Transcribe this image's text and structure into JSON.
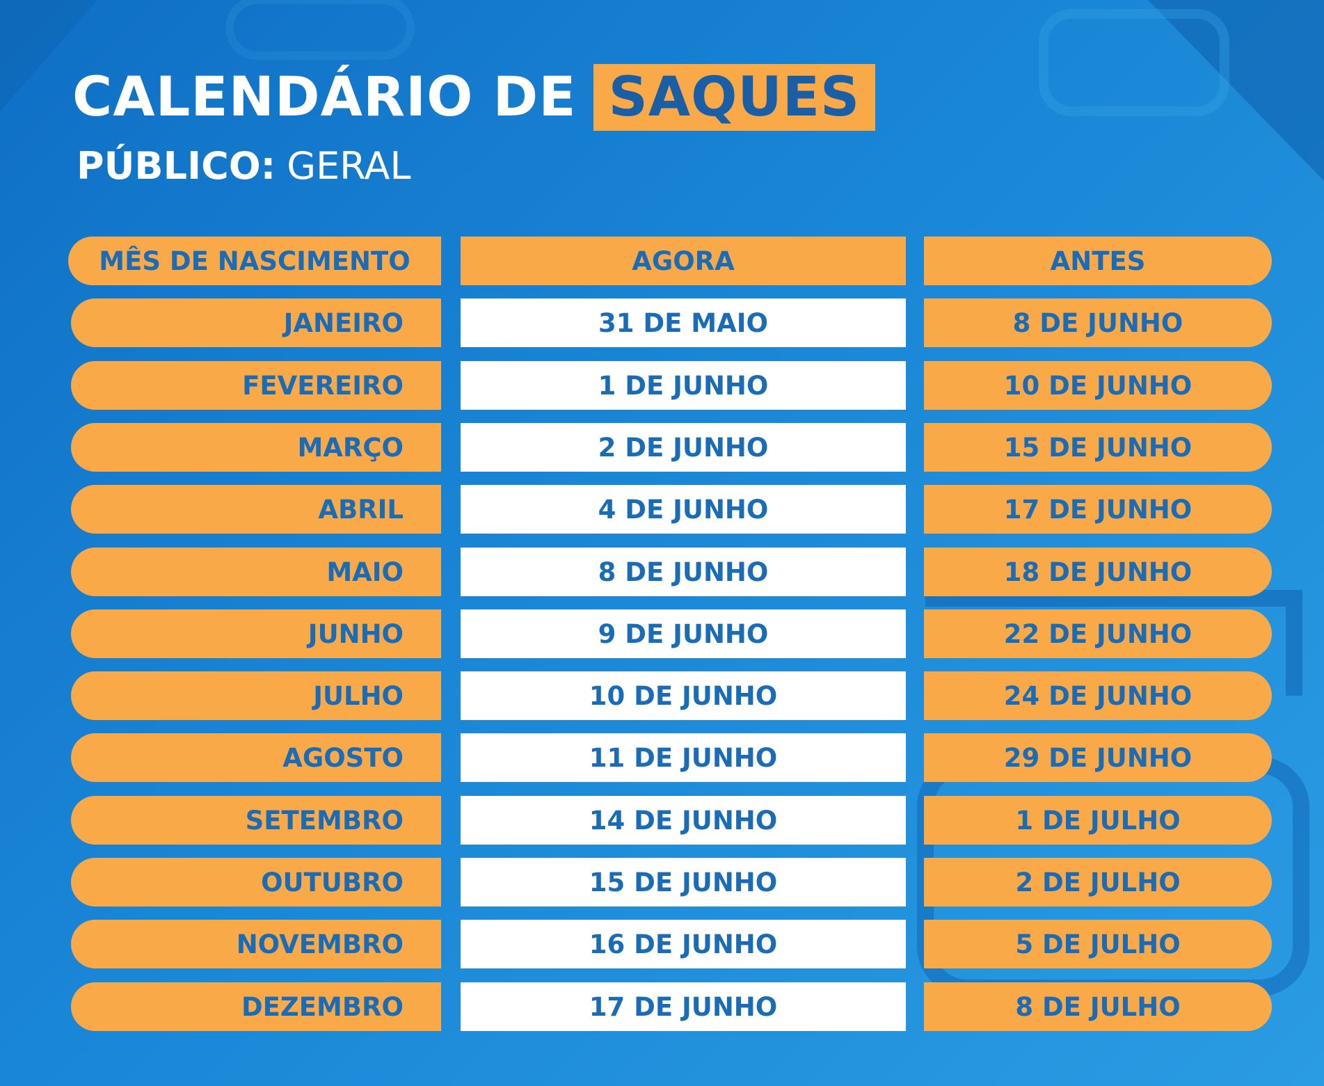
{
  "title": {
    "main": "CALENDÁRIO DE",
    "highlight": "SAQUES"
  },
  "subtitle": {
    "label": "PÚBLICO:",
    "value": "GERAL"
  },
  "colors": {
    "background": "#1a86d6",
    "orange": "#f9a947",
    "text_blue": "#1a6cb7",
    "white": "#ffffff"
  },
  "table": {
    "headers": [
      "MÊS DE NASCIMENTO",
      "AGORA",
      "ANTES"
    ],
    "rows": [
      {
        "month": "JANEIRO",
        "now": "31 DE MAIO",
        "before": "8 DE JUNHO"
      },
      {
        "month": "FEVEREIRO",
        "now": "1 DE JUNHO",
        "before": "10 DE JUNHO"
      },
      {
        "month": "MARÇO",
        "now": "2 DE JUNHO",
        "before": "15 DE JUNHO"
      },
      {
        "month": "ABRIL",
        "now": "4 DE JUNHO",
        "before": "17 DE JUNHO"
      },
      {
        "month": "MAIO",
        "now": "8 DE JUNHO",
        "before": "18 DE JUNHO"
      },
      {
        "month": "JUNHO",
        "now": "9 DE JUNHO",
        "before": "22 DE JUNHO"
      },
      {
        "month": "JULHO",
        "now": "10 DE JUNHO",
        "before": "24 DE JUNHO"
      },
      {
        "month": "AGOSTO",
        "now": "11 DE JUNHO",
        "before": "29 DE JUNHO"
      },
      {
        "month": "SETEMBRO",
        "now": "14 DE JUNHO",
        "before": "1 DE JULHO"
      },
      {
        "month": "OUTUBRO",
        "now": "15 DE JUNHO",
        "before": "2 DE JULHO"
      },
      {
        "month": "NOVEMBRO",
        "now": "16 DE JUNHO",
        "before": "5 DE JULHO"
      },
      {
        "month": "DEZEMBRO",
        "now": "17 DE JUNHO",
        "before": "8 DE JULHO"
      }
    ]
  }
}
